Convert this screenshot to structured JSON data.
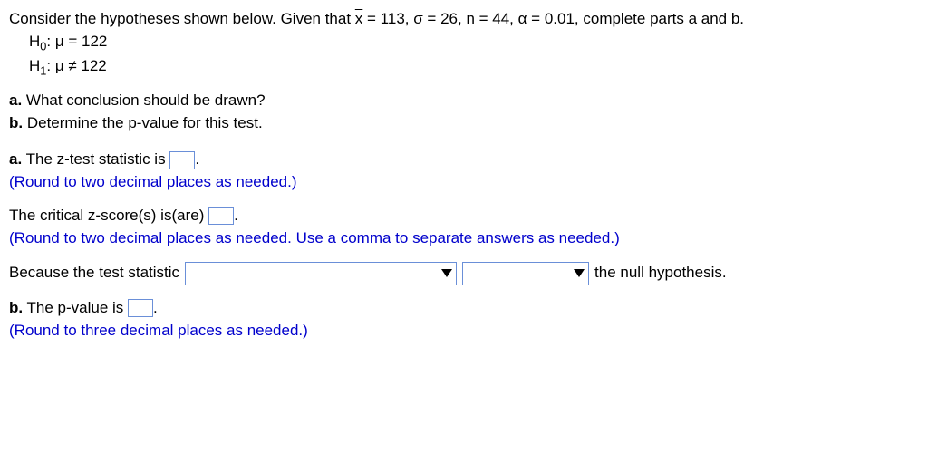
{
  "problem": {
    "intro_prefix": "Consider the hypotheses shown below. Given that ",
    "given": {
      "xbar": "x",
      "xbar_eq": " = 113, σ = 26, n = 44, α = 0.01, complete parts a and b."
    },
    "h0": {
      "label": "H",
      "sub": "0",
      "body": ": μ = 122"
    },
    "h1": {
      "label": "H",
      "sub": "1",
      "body": ": μ ≠ 122"
    },
    "qa": {
      "label": "a.",
      "text": " What conclusion should be drawn?"
    },
    "qb": {
      "label": "b.",
      "text": " Determine the p-value for this test."
    }
  },
  "answers": {
    "a1": {
      "label": "a.",
      "text": " The z-test statistic is ",
      "period": "."
    },
    "a1_hint": "(Round to two decimal places as needed.)",
    "a2": {
      "text": "The critical z-score(s) is(are) ",
      "period": "."
    },
    "a2_hint": "(Round to two decimal places as needed. Use a comma to separate answers as needed.)",
    "a3": {
      "prefix": "Because the test statistic",
      "suffix": "the null hypothesis."
    },
    "b1": {
      "label": "b.",
      "text": " The p-value is ",
      "period": "."
    },
    "b1_hint": "(Round to three decimal places as needed.)"
  },
  "colors": {
    "link_blue": "#0000cc",
    "input_border": "#6a8fd8"
  }
}
